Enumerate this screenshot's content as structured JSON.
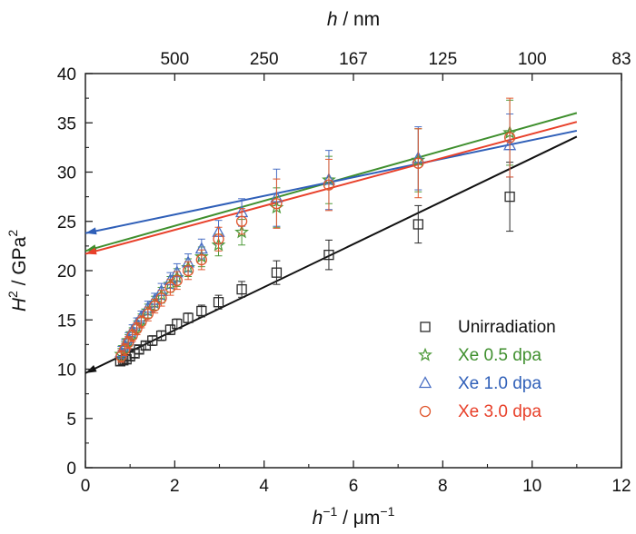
{
  "chart_data": {
    "type": "scatter",
    "x_axis": {
      "label_base": "h",
      "label_sup": "−1",
      "label_units": " / μm",
      "label_units_sup": "−1",
      "range": [
        0,
        12
      ],
      "ticks": [
        "0",
        "2",
        "4",
        "6",
        "8",
        "10",
        "12"
      ]
    },
    "y_axis": {
      "label_base": "H",
      "label_sup": "2",
      "label_units": " / GPa",
      "label_units_sup": "2",
      "range": [
        0,
        40
      ],
      "ticks": [
        "0",
        "5",
        "10",
        "15",
        "20",
        "25",
        "30",
        "35",
        "40"
      ]
    },
    "top_axis": {
      "label_base": "h",
      "label_units": " / nm",
      "ticks": [
        {
          "text": "500",
          "x": 2.0
        },
        {
          "text": "250",
          "x": 4.0
        },
        {
          "text": "167",
          "x": 6.0
        },
        {
          "text": "125",
          "x": 8.0
        },
        {
          "text": "100",
          "x": 10.0
        },
        {
          "text": "83",
          "x": 12.0
        }
      ]
    },
    "grid": false,
    "legend_position": "bottom-right",
    "series": [
      {
        "name": "Unirradiation",
        "marker": "square",
        "color": "#2a2a2a",
        "line_color": "#111111",
        "fit": {
          "x0": 0,
          "y0": 9.6,
          "x1": 11,
          "y1": 33.6
        },
        "points": [
          {
            "x": 0.78,
            "y": 10.8,
            "err": 0.4
          },
          {
            "x": 0.85,
            "y": 10.9,
            "err": 0.4
          },
          {
            "x": 0.92,
            "y": 11.0,
            "err": 0.4
          },
          {
            "x": 1.0,
            "y": 11.3,
            "err": 0.4
          },
          {
            "x": 1.1,
            "y": 11.6,
            "err": 0.4
          },
          {
            "x": 1.2,
            "y": 12.0,
            "err": 0.4
          },
          {
            "x": 1.35,
            "y": 12.4,
            "err": 0.4
          },
          {
            "x": 1.5,
            "y": 12.9,
            "err": 0.5
          },
          {
            "x": 1.7,
            "y": 13.4,
            "err": 0.5
          },
          {
            "x": 1.9,
            "y": 14.0,
            "err": 0.5
          },
          {
            "x": 2.05,
            "y": 14.6,
            "err": 0.5
          },
          {
            "x": 2.3,
            "y": 15.2,
            "err": 0.5
          },
          {
            "x": 2.6,
            "y": 15.9,
            "err": 0.6
          },
          {
            "x": 2.98,
            "y": 16.8,
            "err": 0.7
          },
          {
            "x": 3.5,
            "y": 18.1,
            "err": 0.8
          },
          {
            "x": 4.28,
            "y": 19.8,
            "err": 1.2
          },
          {
            "x": 5.45,
            "y": 21.6,
            "err": 1.5
          },
          {
            "x": 7.45,
            "y": 24.7,
            "err": 1.9
          },
          {
            "x": 9.5,
            "y": 27.5,
            "err": 3.5
          }
        ]
      },
      {
        "name": "Xe 0.5 dpa",
        "marker": "star",
        "color": "#4e9a3a",
        "line_color": "#3f8f2e",
        "fit": {
          "x0": 0,
          "y0": 22.0,
          "x1": 11,
          "y1": 36.0
        },
        "points": [
          {
            "x": 0.8,
            "y": 11.5,
            "err": 0.6
          },
          {
            "x": 0.88,
            "y": 12.2,
            "err": 0.6
          },
          {
            "x": 0.96,
            "y": 12.9,
            "err": 0.6
          },
          {
            "x": 1.05,
            "y": 13.6,
            "err": 0.6
          },
          {
            "x": 1.15,
            "y": 14.3,
            "err": 0.6
          },
          {
            "x": 1.25,
            "y": 15.0,
            "err": 0.6
          },
          {
            "x": 1.4,
            "y": 15.9,
            "err": 0.7
          },
          {
            "x": 1.55,
            "y": 16.7,
            "err": 0.7
          },
          {
            "x": 1.7,
            "y": 17.5,
            "err": 0.8
          },
          {
            "x": 1.9,
            "y": 18.6,
            "err": 0.8
          },
          {
            "x": 2.05,
            "y": 19.3,
            "err": 0.9
          },
          {
            "x": 2.3,
            "y": 20.3,
            "err": 0.9
          },
          {
            "x": 2.6,
            "y": 21.4,
            "err": 1.0
          },
          {
            "x": 2.98,
            "y": 22.6,
            "err": 1.1
          },
          {
            "x": 3.5,
            "y": 23.9,
            "err": 1.3
          },
          {
            "x": 4.28,
            "y": 26.4,
            "err": 2.0
          },
          {
            "x": 5.45,
            "y": 29.2,
            "err": 2.4
          },
          {
            "x": 7.45,
            "y": 31.2,
            "err": 3.2
          },
          {
            "x": 9.5,
            "y": 34.0,
            "err": 3.3
          }
        ]
      },
      {
        "name": "Xe 1.0 dpa",
        "marker": "triangle",
        "color": "#4a6fc4",
        "line_color": "#2f5fb8",
        "fit": {
          "x0": 0,
          "y0": 23.8,
          "x1": 11,
          "y1": 34.2
        },
        "points": [
          {
            "x": 0.8,
            "y": 11.7,
            "err": 0.6
          },
          {
            "x": 0.88,
            "y": 12.4,
            "err": 0.6
          },
          {
            "x": 0.96,
            "y": 13.1,
            "err": 0.6
          },
          {
            "x": 1.05,
            "y": 13.9,
            "err": 0.6
          },
          {
            "x": 1.15,
            "y": 14.6,
            "err": 0.6
          },
          {
            "x": 1.25,
            "y": 15.3,
            "err": 0.6
          },
          {
            "x": 1.4,
            "y": 16.2,
            "err": 0.7
          },
          {
            "x": 1.55,
            "y": 17.0,
            "err": 0.7
          },
          {
            "x": 1.7,
            "y": 17.9,
            "err": 0.8
          },
          {
            "x": 1.9,
            "y": 19.0,
            "err": 0.8
          },
          {
            "x": 2.05,
            "y": 19.8,
            "err": 0.9
          },
          {
            "x": 2.3,
            "y": 20.8,
            "err": 0.9
          },
          {
            "x": 2.6,
            "y": 22.2,
            "err": 1.0
          },
          {
            "x": 2.98,
            "y": 23.9,
            "err": 1.2
          },
          {
            "x": 3.5,
            "y": 25.9,
            "err": 1.4
          },
          {
            "x": 4.28,
            "y": 27.4,
            "err": 2.9
          },
          {
            "x": 5.45,
            "y": 29.2,
            "err": 3.0
          },
          {
            "x": 7.45,
            "y": 31.4,
            "err": 3.2
          },
          {
            "x": 9.5,
            "y": 32.7,
            "err": 3.2
          }
        ]
      },
      {
        "name": "Xe 3.0 dpa",
        "marker": "circle",
        "color": "#e0572e",
        "line_color": "#e8402a",
        "fit": {
          "x0": 0,
          "y0": 21.7,
          "x1": 11,
          "y1": 35.1
        },
        "points": [
          {
            "x": 0.8,
            "y": 11.3,
            "err": 0.6
          },
          {
            "x": 0.88,
            "y": 12.0,
            "err": 0.6
          },
          {
            "x": 0.96,
            "y": 12.7,
            "err": 0.6
          },
          {
            "x": 1.05,
            "y": 13.4,
            "err": 0.6
          },
          {
            "x": 1.15,
            "y": 14.1,
            "err": 0.6
          },
          {
            "x": 1.25,
            "y": 14.8,
            "err": 0.6
          },
          {
            "x": 1.4,
            "y": 15.6,
            "err": 0.7
          },
          {
            "x": 1.55,
            "y": 16.4,
            "err": 0.7
          },
          {
            "x": 1.7,
            "y": 17.2,
            "err": 0.8
          },
          {
            "x": 1.9,
            "y": 18.3,
            "err": 0.8
          },
          {
            "x": 2.05,
            "y": 19.0,
            "err": 0.9
          },
          {
            "x": 2.3,
            "y": 20.0,
            "err": 0.9
          },
          {
            "x": 2.6,
            "y": 21.1,
            "err": 1.0
          },
          {
            "x": 2.98,
            "y": 23.2,
            "err": 1.2
          },
          {
            "x": 3.5,
            "y": 25.0,
            "err": 1.3
          },
          {
            "x": 4.28,
            "y": 26.8,
            "err": 2.5
          },
          {
            "x": 5.45,
            "y": 28.7,
            "err": 2.6
          },
          {
            "x": 7.45,
            "y": 30.9,
            "err": 3.5
          },
          {
            "x": 9.5,
            "y": 33.5,
            "err": 4.0
          }
        ]
      }
    ]
  }
}
